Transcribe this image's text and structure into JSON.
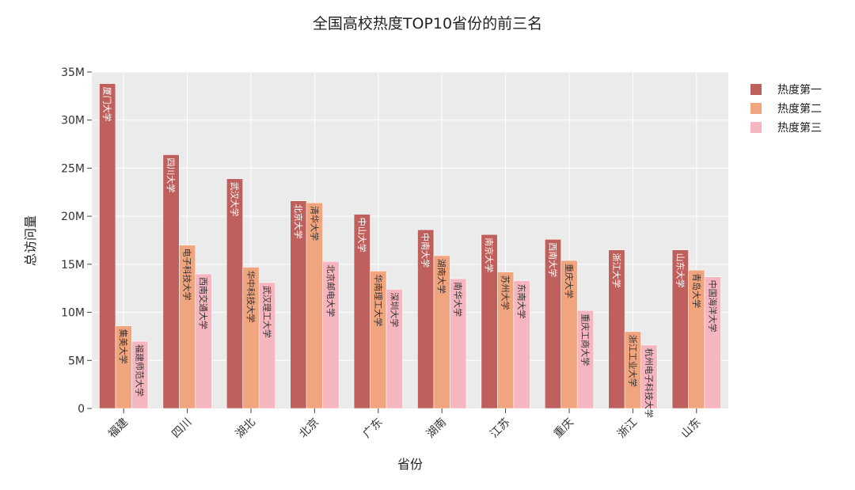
{
  "chart_data": {
    "type": "bar",
    "title": "全国高校热度TOP10省份的前三名",
    "xlabel": "省份",
    "ylabel": "总访问量",
    "categories": [
      "福建",
      "四川",
      "湖北",
      "北京",
      "广东",
      "湖南",
      "江苏",
      "重庆",
      "浙江",
      "山东"
    ],
    "ylim": [
      0,
      35000000
    ],
    "yticks": [
      0,
      5000000,
      10000000,
      15000000,
      20000000,
      25000000,
      30000000,
      35000000
    ],
    "ytick_labels": [
      "0",
      "5M",
      "10M",
      "15M",
      "20M",
      "25M",
      "30M",
      "35M"
    ],
    "grid": true,
    "legend_position": "top-right",
    "series": [
      {
        "name": "热度第一",
        "color": "#c0605d",
        "label_color": "#ffffff",
        "values": [
          33800000,
          26400000,
          23900000,
          21600000,
          20200000,
          18600000,
          18100000,
          17600000,
          16500000,
          16500000
        ],
        "labels": [
          "厦门大学",
          "四川大学",
          "武汉大学",
          "北京大学",
          "中山大学",
          "中南大学",
          "南京大学",
          "西南大学",
          "浙江大学",
          "山东大学"
        ]
      },
      {
        "name": "热度第二",
        "color": "#f0a57f",
        "label_color": "#333333",
        "values": [
          8600000,
          17000000,
          14700000,
          21400000,
          14300000,
          15900000,
          14200000,
          15400000,
          8000000,
          14400000
        ],
        "labels": [
          "集美大学",
          "电子科技大学",
          "华中科技大学",
          "清华大学",
          "华南理工大学",
          "湖南大学",
          "苏州大学",
          "重庆大学",
          "浙江工业大学",
          "青岛大学"
        ]
      },
      {
        "name": "热度第三",
        "color": "#f6b6bf",
        "label_color": "#333333",
        "values": [
          7000000,
          14000000,
          13100000,
          15300000,
          12400000,
          13500000,
          13300000,
          10200000,
          6600000,
          13700000
        ],
        "labels": [
          "福建师范大学",
          "西南交通大学",
          "武汉理工大学",
          "北京邮电大学",
          "深圳大学",
          "南华大学",
          "东南大学",
          "重庆工商大学",
          "杭州电子科技大学",
          "中国海洋大学"
        ]
      }
    ]
  }
}
